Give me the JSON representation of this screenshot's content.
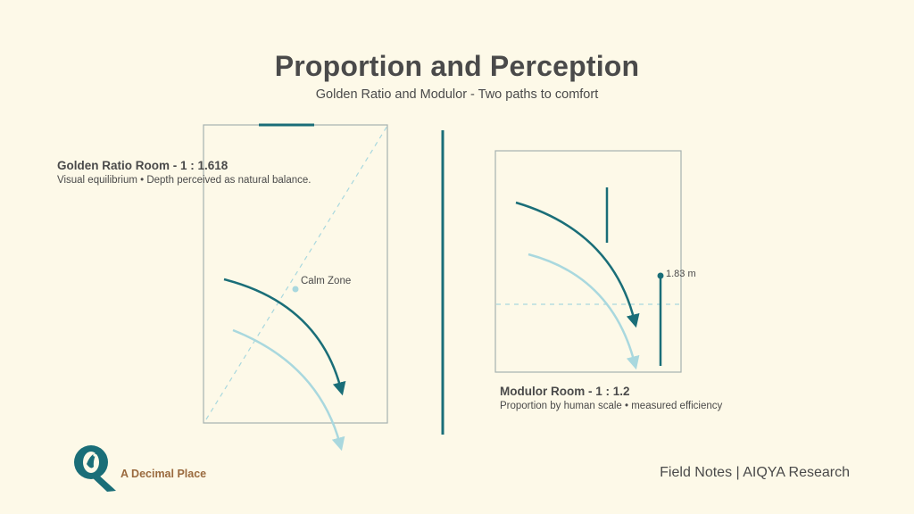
{
  "header": {
    "title": "Proportion and Perception",
    "subtitle": "Golden Ratio and Modulor - Two paths to comfort"
  },
  "golden_room": {
    "name": "Golden Ratio Room - 1 : 1.618",
    "description": "Visual equilibrium • Depth perceived as natural balance.",
    "calm_zone_label": "Calm Zone"
  },
  "modulor_room": {
    "name": "Modulor Room - 1 : 1.2",
    "description": "Proportion by human scale • measured efficiency",
    "height_marker": "1.83 m"
  },
  "branding": {
    "brand_name": "A Decimal Place",
    "footer": "Field Notes | AIQYA Research"
  },
  "colors": {
    "background": "#fdf9e8",
    "teal_dark": "#1a6e78",
    "teal_light": "#a9d8de",
    "frame": "#a6b1b0",
    "text": "#4a4a4a",
    "brand": "#9a6a3e"
  }
}
